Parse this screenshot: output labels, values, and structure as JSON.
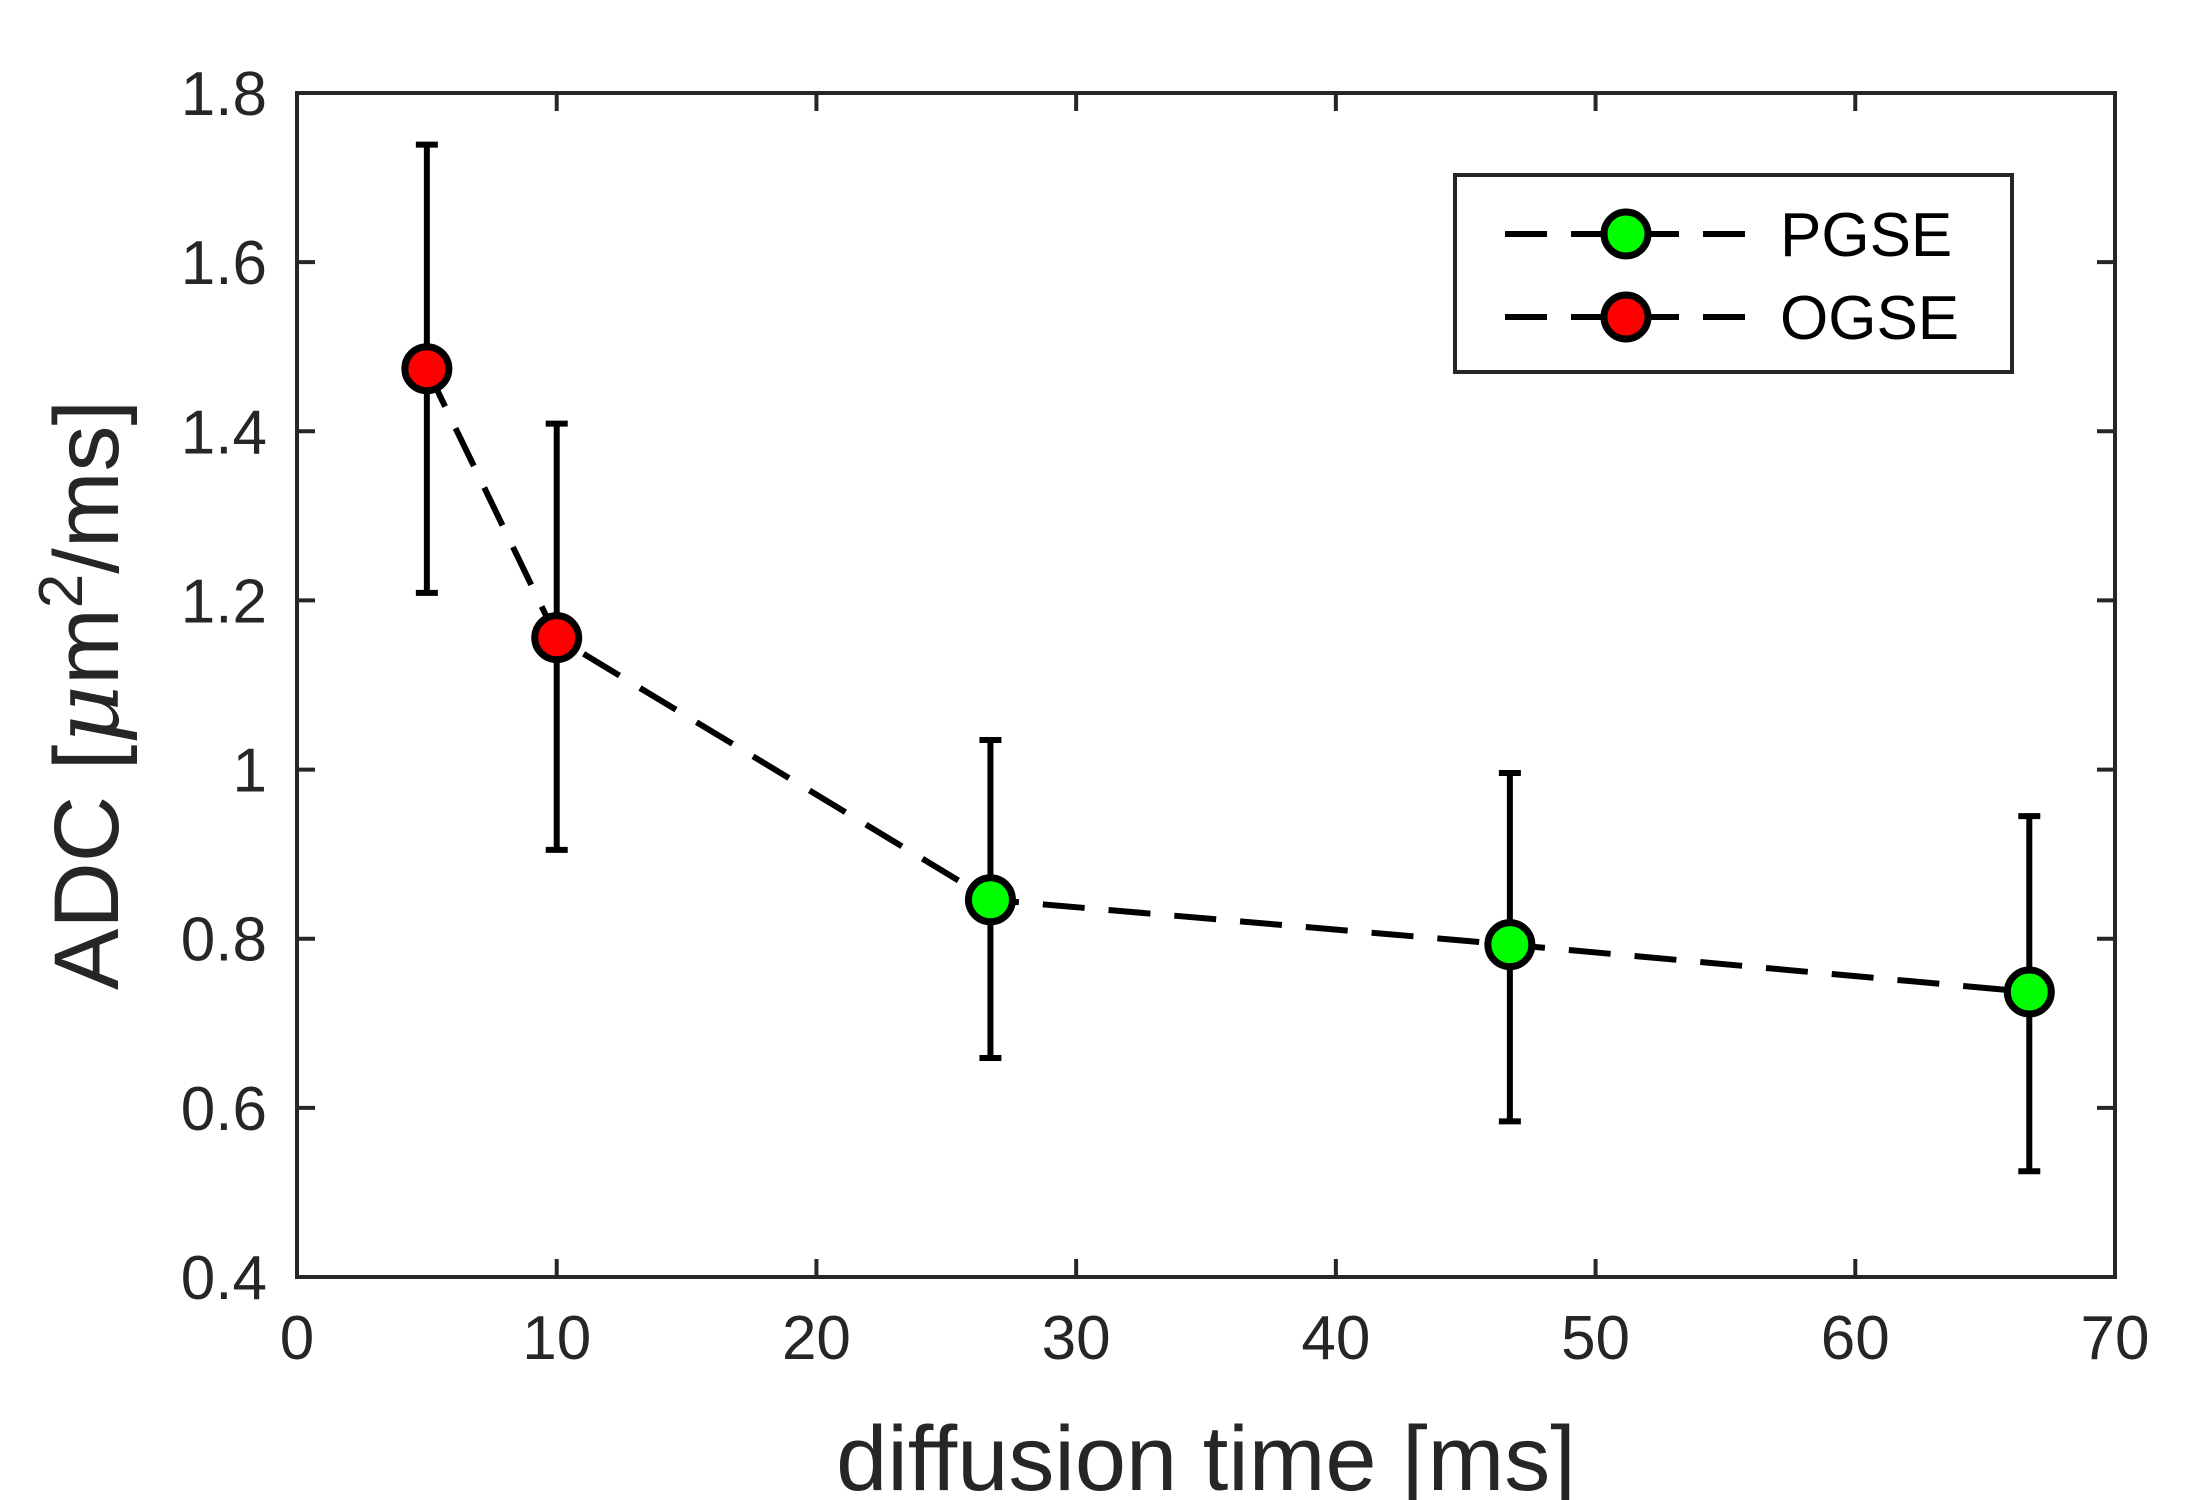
{
  "chart_data": {
    "type": "line",
    "xlabel": "diffusion time [ms]",
    "ylabel": {
      "prefix": "ADC [",
      "mu": "μ",
      "unit_base": "m",
      "unit_superscript": "2",
      "suffix": "/ms]",
      "full": "ADC [μm²/ms]"
    },
    "xlim": [
      0,
      70
    ],
    "ylim": [
      0.4,
      1.8
    ],
    "xticks": [
      0,
      10,
      20,
      30,
      40,
      50,
      60,
      70
    ],
    "xtick_labels": [
      "0",
      "10",
      "20",
      "30",
      "40",
      "50",
      "60",
      "70"
    ],
    "yticks": [
      0.4,
      0.6,
      0.8,
      1.0,
      1.2,
      1.4,
      1.6,
      1.8
    ],
    "ytick_labels": [
      "0.4",
      "0.6",
      "0.8",
      "1",
      "1.2",
      "1.4",
      "1.6",
      "1.8"
    ],
    "grid": false,
    "legend_position": "top-right",
    "connecting_line": {
      "style": "dashed",
      "color": "#000000"
    },
    "series": [
      {
        "name": "PGSE",
        "color": "#00ff00",
        "points": [
          {
            "x": 26.7,
            "y": 0.846,
            "err_low": 0.659,
            "err_high": 1.035
          },
          {
            "x": 46.7,
            "y": 0.793,
            "err_low": 0.584,
            "err_high": 0.996
          },
          {
            "x": 66.7,
            "y": 0.737,
            "err_low": 0.525,
            "err_high": 0.945
          }
        ]
      },
      {
        "name": "OGSE",
        "color": "#ff0000",
        "points": [
          {
            "x": 5.0,
            "y": 1.474,
            "err_low": 1.209,
            "err_high": 1.739
          },
          {
            "x": 10.0,
            "y": 1.156,
            "err_low": 0.905,
            "err_high": 1.409
          }
        ]
      }
    ]
  }
}
